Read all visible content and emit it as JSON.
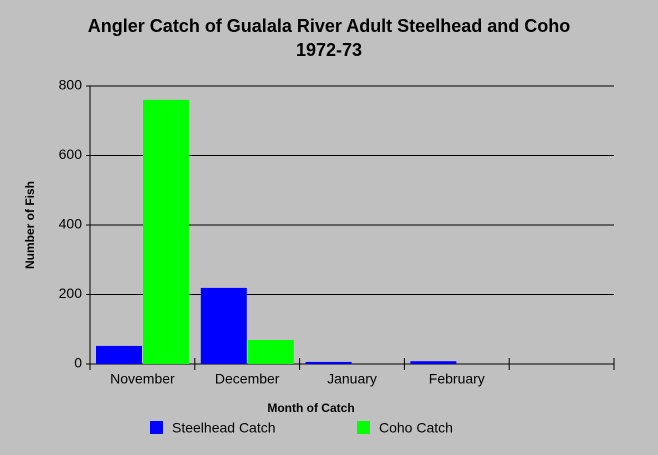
{
  "chart_data": {
    "type": "bar",
    "title": "Angler Catch of Gualala River Adult Steelhead and Coho 1972-73",
    "x_label": "Month of Catch",
    "y_label": "Number of Fish",
    "categories": [
      "November",
      "December",
      "January",
      "February",
      null
    ],
    "series": [
      {
        "name": "Steelhead Catch",
        "color": "#0000ff",
        "values": [
          52,
          219,
          6,
          8,
          null
        ]
      },
      {
        "name": "Coho Catch",
        "color": "#00ff00",
        "values": [
          760,
          69,
          0,
          0,
          null
        ]
      }
    ],
    "ylim": [
      0,
      800
    ],
    "yticks": [
      0,
      200,
      400,
      600,
      800
    ],
    "grid": true
  }
}
